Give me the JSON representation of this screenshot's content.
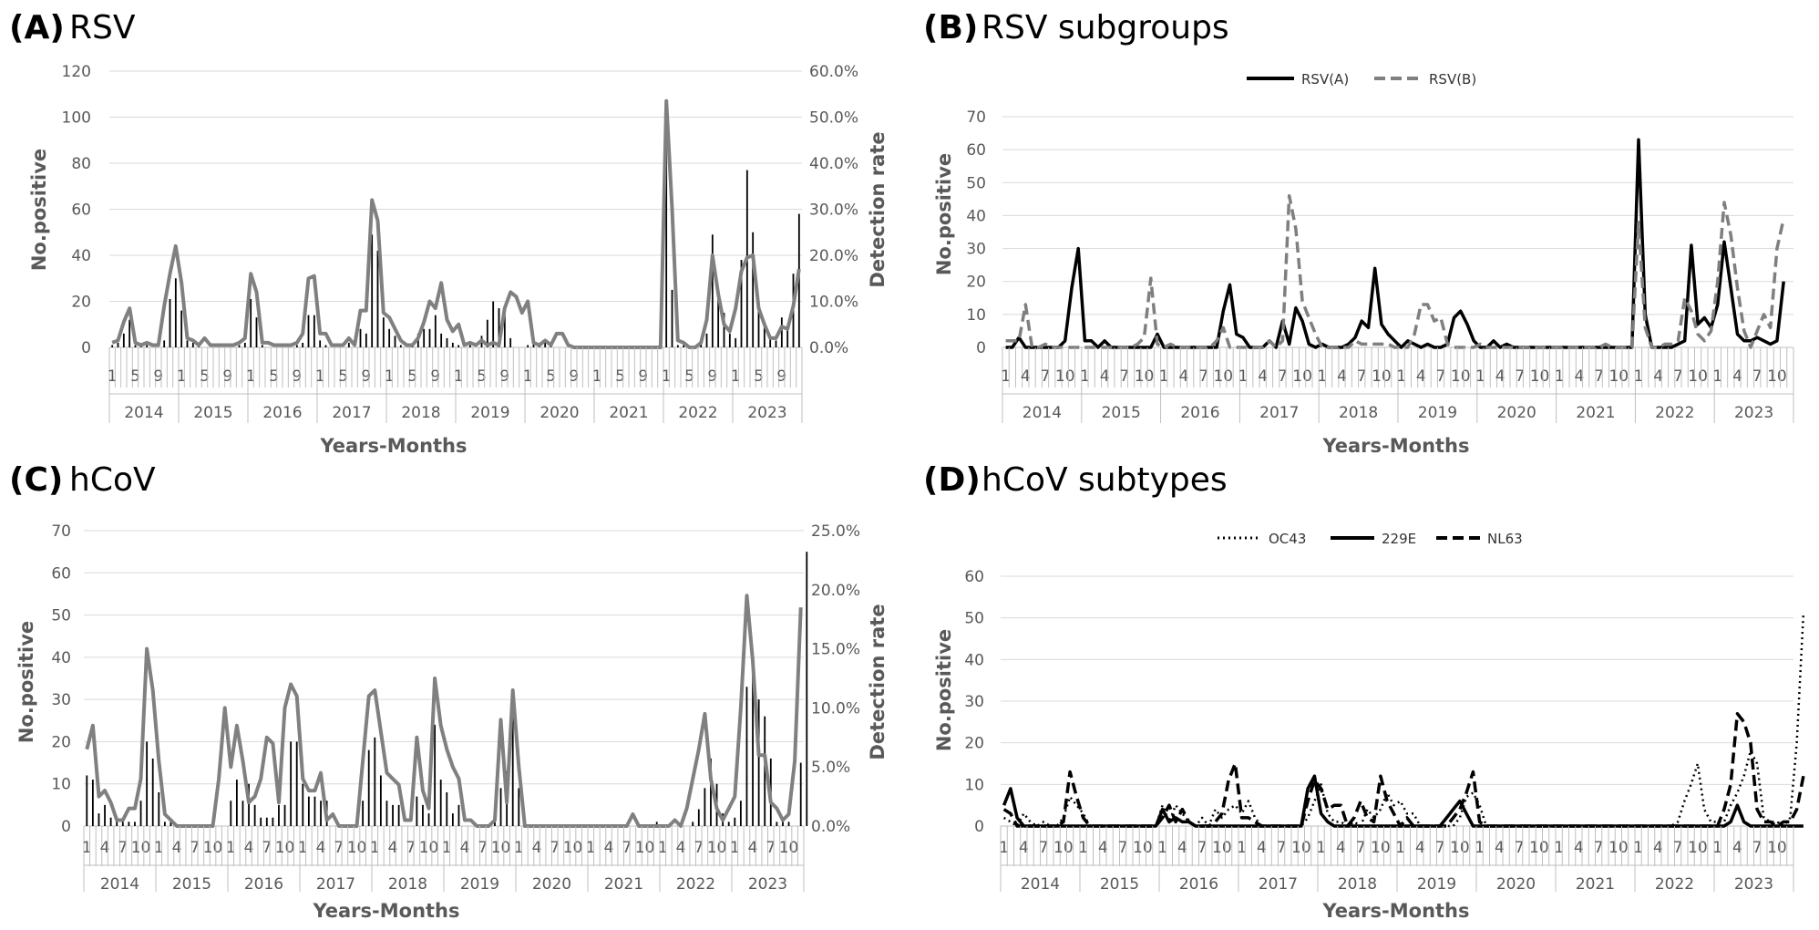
{
  "chart_data": [
    {
      "panel": "(A)",
      "title": "RSV",
      "type": "bar+line",
      "xlabel": "Years-Months",
      "ylabel": "No.positive",
      "y2label": "Detection rate",
      "ylim": [
        0,
        120
      ],
      "yticks": [
        "0",
        "20",
        "40",
        "60",
        "80",
        "100",
        "120"
      ],
      "y2lim": [
        0,
        60
      ],
      "y2ticks": [
        "0.0%",
        "10.0%",
        "20.0%",
        "30.0%",
        "40.0%",
        "50.0%",
        "60.0%"
      ],
      "month_ticks": [
        "1",
        "5",
        "9"
      ],
      "years": [
        "2014",
        "2015",
        "2016",
        "2017",
        "2018",
        "2019",
        "2020",
        "2021",
        "2022",
        "2023"
      ],
      "bars": [
        1,
        2,
        6,
        12,
        1,
        1,
        1,
        0,
        0,
        3,
        21,
        30,
        16,
        3,
        2,
        1,
        0,
        0,
        0,
        0,
        0,
        0,
        1,
        2,
        21,
        13,
        1,
        0,
        0,
        0,
        0,
        0,
        1,
        2,
        14,
        14,
        3,
        1,
        0,
        0,
        0,
        2,
        0,
        8,
        6,
        49,
        42,
        13,
        8,
        5,
        1,
        0,
        1,
        6,
        8,
        8,
        14,
        6,
        4,
        2,
        1,
        0,
        1,
        0,
        5,
        12,
        20,
        17,
        16,
        4,
        0,
        0,
        1,
        2,
        1,
        3,
        2,
        0,
        0,
        0,
        0,
        0,
        0,
        0,
        0,
        0,
        0,
        0,
        0,
        0,
        0,
        0,
        0,
        0,
        0,
        0,
        95,
        25,
        1,
        1,
        0,
        0,
        2,
        6,
        49,
        22,
        15,
        6,
        4,
        38,
        77,
        50,
        18,
        10,
        4,
        3,
        13,
        9,
        32,
        58
      ],
      "rate": [
        1.0,
        1.5,
        5.5,
        8.5,
        1.0,
        0.5,
        1.0,
        0.5,
        0.5,
        9.0,
        16.0,
        22.0,
        14.0,
        2.0,
        1.5,
        0.5,
        2.0,
        0.5,
        0.5,
        0.5,
        0.5,
        0.5,
        1.0,
        2.0,
        16.0,
        12.0,
        1.0,
        1.0,
        0.5,
        0.5,
        0.5,
        0.5,
        1.0,
        3.0,
        15.0,
        15.5,
        3.0,
        3.0,
        0.5,
        0.5,
        0.5,
        2.0,
        0.5,
        8.0,
        8.0,
        32.0,
        27.5,
        7.5,
        6.5,
        4.0,
        1.5,
        0.5,
        0.5,
        2.0,
        5.5,
        10.0,
        8.5,
        14.0,
        6.0,
        3.5,
        5.0,
        0.5,
        1.0,
        0.5,
        1.5,
        0.5,
        1.0,
        0.5,
        8.5,
        12.0,
        11.0,
        7.5,
        10.0,
        1.0,
        0.5,
        1.5,
        0.5,
        3.0,
        3.0,
        0.5,
        0.0,
        0.0,
        0.0,
        0.0,
        0.0,
        0.0,
        0.0,
        0.0,
        0.0,
        0.0,
        0.0,
        0.0,
        0.0,
        0.0,
        0.0,
        0.0,
        53.5,
        30.0,
        1.5,
        1.0,
        0.0,
        0.0,
        1.0,
        6.0,
        20.0,
        11.5,
        5.0,
        3.5,
        8.5,
        16.5,
        19.5,
        20.0,
        8.5,
        5.0,
        2.0,
        2.0,
        4.5,
        4.0,
        9.0,
        17.0
      ]
    },
    {
      "panel": "(B)",
      "title": "RSV subgroups",
      "type": "line",
      "xlabel": "Years-Months",
      "ylabel": "No.positive",
      "ylim": [
        0,
        70
      ],
      "yticks": [
        "0",
        "10",
        "20",
        "30",
        "40",
        "50",
        "60",
        "70"
      ],
      "month_ticks": [
        "1",
        "4",
        "7",
        "10"
      ],
      "years": [
        "2014",
        "2015",
        "2016",
        "2017",
        "2018",
        "2019",
        "2020",
        "2021",
        "2022",
        "2023"
      ],
      "series": [
        {
          "name": "RSV(A)",
          "values": [
            0,
            0,
            3,
            0,
            0,
            0,
            0,
            0,
            0,
            2,
            18,
            30,
            2,
            2,
            0,
            2,
            0,
            0,
            0,
            0,
            0,
            0,
            0,
            4,
            0,
            0,
            0,
            0,
            0,
            0,
            0,
            0,
            0,
            11,
            19,
            4,
            3,
            0,
            0,
            0,
            2,
            0,
            8,
            1,
            12,
            8,
            1,
            0,
            1,
            0,
            0,
            0,
            1,
            3,
            8,
            6,
            24,
            7,
            4,
            2,
            0,
            2,
            1,
            0,
            1,
            0,
            0,
            1,
            9,
            11,
            7,
            2,
            0,
            0,
            2,
            0,
            1,
            0,
            0,
            0,
            0,
            0,
            0,
            0,
            0,
            0,
            0,
            0,
            0,
            0,
            0,
            0,
            0,
            0,
            0,
            0,
            63,
            10,
            0,
            0,
            0,
            0,
            1,
            2,
            31,
            7,
            9,
            6,
            13,
            32,
            18,
            4,
            2,
            2,
            3,
            2,
            1,
            2,
            20
          ]
        },
        {
          "name": "RSV(B)",
          "values": [
            2,
            2,
            2,
            13,
            0,
            0,
            1,
            0,
            0,
            0,
            0,
            0,
            0,
            0,
            0,
            0,
            0,
            0,
            0,
            0,
            1,
            3,
            21,
            1,
            0,
            1,
            0,
            0,
            0,
            0,
            0,
            0,
            2,
            6,
            0,
            0,
            0,
            0,
            0,
            0,
            2,
            0,
            2,
            46,
            36,
            14,
            9,
            4,
            0,
            0,
            0,
            0,
            0,
            2,
            1,
            1,
            1,
            1,
            1,
            0,
            0,
            0,
            4,
            13,
            13,
            8,
            9,
            1,
            0,
            0,
            0,
            0,
            1,
            0,
            0,
            0,
            0,
            0,
            0,
            0,
            0,
            0,
            0,
            0,
            0,
            0,
            0,
            0,
            0,
            0,
            0,
            1,
            0,
            0,
            0,
            0,
            38,
            6,
            0,
            0,
            1,
            1,
            2,
            15,
            11,
            4,
            2,
            5,
            20,
            44,
            34,
            18,
            5,
            0,
            5,
            10,
            6,
            30,
            39
          ]
        }
      ],
      "legend": "top-center"
    },
    {
      "panel": "(C)",
      "title": "hCoV",
      "type": "bar+line",
      "xlabel": "Years-Months",
      "ylabel": "No.positive",
      "y2label": "Detection rate",
      "ylim": [
        0,
        70
      ],
      "yticks": [
        "0",
        "10",
        "20",
        "30",
        "40",
        "50",
        "60",
        "70"
      ],
      "y2lim": [
        0,
        25
      ],
      "y2ticks": [
        "0.0%",
        "5.0%",
        "10.0%",
        "15.0%",
        "20.0%",
        "25.0%"
      ],
      "month_ticks": [
        "1",
        "4",
        "7",
        "10"
      ],
      "years": [
        "2014",
        "2015",
        "2016",
        "2017",
        "2018",
        "2019",
        "2020",
        "2021",
        "2022",
        "2023"
      ],
      "bars": [
        12,
        11,
        3,
        5,
        2,
        2,
        1,
        1,
        1,
        6,
        20,
        16,
        8,
        1,
        1,
        0,
        0,
        0,
        0,
        0,
        0,
        0,
        0,
        0,
        6,
        11,
        6,
        10,
        5,
        2,
        2,
        2,
        5,
        5,
        20,
        20,
        10,
        7,
        7,
        6,
        6,
        0,
        0,
        0,
        0,
        0,
        6,
        18,
        21,
        12,
        6,
        5,
        5,
        0,
        0,
        7,
        5,
        3,
        24,
        11,
        8,
        3,
        5,
        0,
        0,
        0,
        0,
        0,
        2,
        9,
        13,
        30,
        9,
        0,
        0,
        0,
        0,
        0,
        0,
        0,
        0,
        0,
        0,
        0,
        0,
        0,
        0,
        0,
        0,
        0,
        0,
        0,
        0,
        0,
        0,
        1,
        0,
        0,
        0,
        0,
        0,
        1,
        4,
        9,
        16,
        10,
        3,
        1,
        2,
        6,
        33,
        38,
        30,
        26,
        16,
        1,
        1,
        1,
        0,
        15,
        65
      ],
      "rate": [
        6.5,
        8.5,
        2.5,
        3.0,
        2.0,
        0.5,
        0.5,
        1.5,
        1.5,
        4.0,
        15.0,
        11.5,
        5.5,
        1.0,
        0.5,
        0.0,
        0.0,
        0.0,
        0.0,
        0.0,
        0.0,
        0.0,
        4.0,
        10.0,
        5.0,
        8.5,
        5.5,
        2.0,
        2.5,
        4.0,
        7.5,
        7.0,
        2.0,
        10.0,
        12.0,
        11.0,
        4.0,
        3.0,
        3.0,
        4.5,
        0.5,
        1.0,
        0.0,
        0.0,
        0.0,
        0.0,
        5.5,
        11.0,
        11.5,
        8.0,
        4.5,
        4.0,
        3.5,
        0.5,
        0.5,
        7.5,
        3.0,
        1.5,
        12.5,
        8.5,
        6.5,
        5.0,
        4.0,
        0.5,
        0.5,
        0.0,
        0.0,
        0.0,
        0.5,
        9.0,
        2.0,
        11.5,
        5.0,
        0.0,
        0.0,
        0.0,
        0.0,
        0.0,
        0.0,
        0.0,
        0.0,
        0.0,
        0.0,
        0.0,
        0.0,
        0.0,
        0.0,
        0.0,
        0.0,
        0.0,
        0.0,
        1.0,
        0.0,
        0.0,
        0.0,
        0.0,
        0.0,
        0.0,
        0.5,
        0.0,
        1.5,
        4.0,
        6.5,
        9.5,
        4.0,
        1.5,
        0.5,
        1.5,
        2.5,
        10.0,
        19.5,
        14.0,
        6.0,
        6.0,
        2.0,
        1.5,
        0.5,
        1.0,
        5.5,
        18.5
      ]
    },
    {
      "panel": "(D)",
      "title": "hCoV subtypes",
      "type": "line",
      "xlabel": "Years-Months",
      "ylabel": "No.positive",
      "ylim": [
        0,
        60
      ],
      "yticks": [
        "0",
        "10",
        "20",
        "30",
        "40",
        "50",
        "60"
      ],
      "month_ticks": [
        "1",
        "4",
        "7",
        "10"
      ],
      "years": [
        "2014",
        "2015",
        "2016",
        "2017",
        "2018",
        "2019",
        "2020",
        "2021",
        "2022",
        "2023"
      ],
      "series": [
        {
          "name": "OC43",
          "values": [
            2,
            1,
            0,
            3,
            1,
            0,
            1,
            0,
            0,
            2,
            7,
            5,
            3,
            0,
            0,
            0,
            0,
            0,
            0,
            0,
            0,
            0,
            0,
            0,
            5,
            1,
            5,
            3,
            1,
            0,
            2,
            0,
            4,
            2,
            4,
            5,
            3,
            6,
            2,
            0,
            0,
            0,
            0,
            0,
            0,
            0,
            2,
            6,
            10,
            3,
            1,
            1,
            0,
            1,
            0,
            4,
            2,
            4,
            8,
            5,
            6,
            3,
            3,
            0,
            0,
            0,
            0,
            0,
            0,
            2,
            7,
            8,
            5,
            0,
            0,
            0,
            0,
            0,
            0,
            0,
            0,
            0,
            0,
            0,
            0,
            0,
            0,
            0,
            0,
            0,
            0,
            0,
            0,
            0,
            0,
            0,
            0,
            0,
            0,
            0,
            0,
            0,
            1,
            6,
            10,
            15,
            4,
            1,
            1,
            1,
            5,
            8,
            12,
            18,
            15,
            2,
            1,
            1,
            0,
            2,
            20,
            51
          ]
        },
        {
          "name": "229E",
          "values": [
            5,
            9,
            2,
            0,
            0,
            0,
            0,
            0,
            0,
            0,
            0,
            0,
            0,
            0,
            0,
            0,
            0,
            0,
            0,
            0,
            0,
            0,
            0,
            0,
            4,
            1,
            2,
            1,
            1,
            0,
            0,
            0,
            0,
            0,
            0,
            0,
            0,
            0,
            0,
            0,
            0,
            0,
            0,
            0,
            0,
            0,
            9,
            12,
            3,
            1,
            0,
            0,
            0,
            0,
            0,
            0,
            0,
            0,
            0,
            0,
            0,
            0,
            0,
            0,
            0,
            0,
            0,
            2,
            4,
            6,
            3,
            0,
            0,
            0,
            0,
            0,
            0,
            0,
            0,
            0,
            0,
            0,
            0,
            0,
            0,
            0,
            0,
            0,
            0,
            0,
            0,
            0,
            0,
            0,
            0,
            0,
            0,
            0,
            0,
            0,
            0,
            0,
            0,
            0,
            0,
            0,
            0,
            0,
            0,
            0,
            1,
            5,
            1,
            0,
            0,
            0,
            0,
            0,
            0,
            0,
            0,
            0
          ]
        },
        {
          "name": "NL63",
          "values": [
            4,
            3,
            0,
            0,
            0,
            0,
            0,
            0,
            0,
            1,
            13,
            7,
            2,
            0,
            0,
            0,
            0,
            0,
            0,
            0,
            0,
            0,
            0,
            0,
            2,
            5,
            1,
            4,
            1,
            0,
            0,
            0,
            1,
            3,
            11,
            15,
            2,
            2,
            1,
            0,
            0,
            0,
            0,
            0,
            0,
            0,
            6,
            11,
            9,
            4,
            5,
            5,
            0,
            2,
            6,
            2,
            1,
            12,
            6,
            3,
            0,
            2,
            0,
            0,
            0,
            0,
            0,
            0,
            2,
            4,
            8,
            13,
            1,
            0,
            0,
            0,
            0,
            0,
            0,
            0,
            0,
            0,
            0,
            0,
            0,
            0,
            0,
            0,
            0,
            0,
            0,
            0,
            0,
            0,
            0,
            0,
            0,
            0,
            0,
            0,
            0,
            0,
            0,
            0,
            0,
            0,
            0,
            0,
            0,
            4,
            10,
            27,
            25,
            20,
            4,
            1,
            1,
            0,
            1,
            1,
            4,
            12
          ]
        }
      ],
      "legend": "top-center"
    }
  ]
}
